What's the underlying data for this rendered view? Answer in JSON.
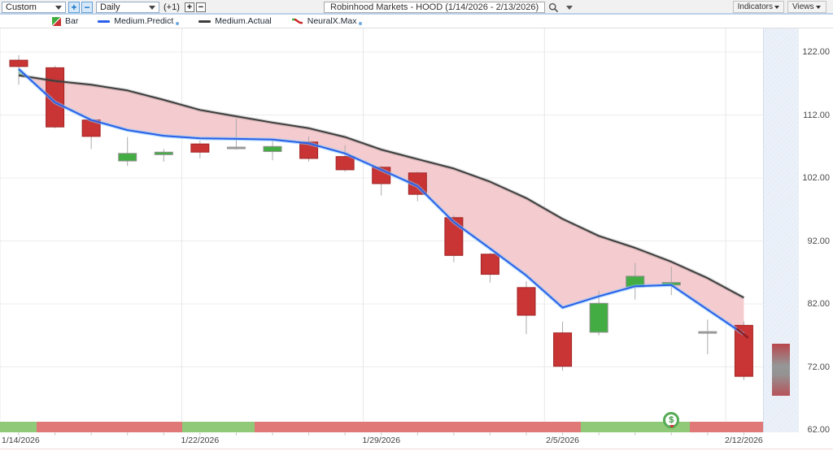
{
  "toolbar": {
    "range_value": "Custom",
    "period_value": "Daily",
    "plus_label": "+",
    "minus_label": "−",
    "offset_label": "(+1)",
    "title": "Robinhood Markets - HOOD (1/14/2026 - 2/13/2026)",
    "indicators_label": "Indicators",
    "views_label": "Views"
  },
  "legend": [
    {
      "label": "Bar",
      "icon": "bar-updown-icon"
    },
    {
      "label": "Medium.Predict",
      "icon": "line-swatch",
      "color": "#2a5fe8",
      "dot": true
    },
    {
      "label": "Medium.Actual",
      "icon": "line-swatch",
      "color": "#3d3d3d",
      "dot": false
    },
    {
      "label": "NeuralX.Max",
      "icon": "neuralx-icon",
      "dot": true
    }
  ],
  "chart_data": {
    "type": "candlestick",
    "title": "Robinhood Markets - HOOD (1/14/2026 - 2/13/2026)",
    "ylim": [
      62,
      122
    ],
    "grid": true,
    "y_ticks": [
      {
        "label": "122.00",
        "value": 122
      },
      {
        "label": "112.00",
        "value": 112
      },
      {
        "label": "102.00",
        "value": 102
      },
      {
        "label": "92.00",
        "value": 92
      },
      {
        "label": "82.00",
        "value": 82
      },
      {
        "label": "72.00",
        "value": 72
      },
      {
        "label": "62.00",
        "value": 62
      }
    ],
    "x_ticks": [
      {
        "label": "1/14/2026",
        "index": 0
      },
      {
        "label": "1/22/2026",
        "index": 5
      },
      {
        "label": "1/29/2026",
        "index": 10
      },
      {
        "label": "2/5/2026",
        "index": 15
      },
      {
        "label": "2/12/2026",
        "index": 20
      }
    ],
    "candles": [
      {
        "o": 120.7,
        "h": 121.5,
        "l": 116.8,
        "c": 119.7,
        "dir": "down"
      },
      {
        "o": 119.5,
        "h": 119.8,
        "l": 109.9,
        "c": 110.1,
        "dir": "down"
      },
      {
        "o": 111.2,
        "h": 111.3,
        "l": 106.6,
        "c": 108.6,
        "dir": "down"
      },
      {
        "o": 104.7,
        "h": 108.5,
        "l": 103.9,
        "c": 105.9,
        "dir": "up"
      },
      {
        "o": 105.7,
        "h": 106.6,
        "l": 104.6,
        "c": 106.1,
        "dir": "up"
      },
      {
        "o": 107.4,
        "h": 107.9,
        "l": 105.1,
        "c": 106.1,
        "dir": "down"
      },
      {
        "o": 106.9,
        "h": 111.4,
        "l": 106.5,
        "c": 106.9,
        "dir": "flat"
      },
      {
        "o": 106.2,
        "h": 108.1,
        "l": 104.8,
        "c": 107.0,
        "dir": "up"
      },
      {
        "o": 107.7,
        "h": 108.6,
        "l": 104.6,
        "c": 105.1,
        "dir": "down"
      },
      {
        "o": 105.4,
        "h": 107.2,
        "l": 103.0,
        "c": 103.3,
        "dir": "down"
      },
      {
        "o": 103.7,
        "h": 103.9,
        "l": 99.2,
        "c": 101.1,
        "dir": "down"
      },
      {
        "o": 102.8,
        "h": 103.0,
        "l": 98.3,
        "c": 99.4,
        "dir": "down"
      },
      {
        "o": 95.7,
        "h": 96.1,
        "l": 88.6,
        "c": 89.7,
        "dir": "down"
      },
      {
        "o": 89.9,
        "h": 90.1,
        "l": 85.4,
        "c": 86.7,
        "dir": "down"
      },
      {
        "o": 84.6,
        "h": 85.6,
        "l": 77.2,
        "c": 80.2,
        "dir": "down"
      },
      {
        "o": 77.4,
        "h": 79.2,
        "l": 71.4,
        "c": 72.1,
        "dir": "down"
      },
      {
        "o": 77.5,
        "h": 84.1,
        "l": 77.0,
        "c": 82.1,
        "dir": "up"
      },
      {
        "o": 84.7,
        "h": 88.5,
        "l": 82.7,
        "c": 86.4,
        "dir": "up"
      },
      {
        "o": 85.0,
        "h": 87.9,
        "l": 83.4,
        "c": 85.4,
        "dir": "up"
      },
      {
        "o": 77.6,
        "h": 79.5,
        "l": 74.0,
        "c": 77.6,
        "dir": "flat"
      },
      {
        "o": 78.6,
        "h": 79.2,
        "l": 69.9,
        "c": 70.5,
        "dir": "down"
      }
    ],
    "series": [
      {
        "name": "Medium.Predict",
        "color": "#2a5fe8",
        "values": [
          119.3,
          114.0,
          111.2,
          109.6,
          108.7,
          108.3,
          108.2,
          108.1,
          107.5,
          105.9,
          103.3,
          100.7,
          95.0,
          90.8,
          86.5,
          81.4,
          83.2,
          84.8,
          85.0,
          81.1,
          77.2
        ]
      },
      {
        "name": "Medium.Actual",
        "color": "#3d3d3d",
        "values": [
          118.3,
          117.4,
          116.8,
          115.9,
          114.4,
          112.8,
          111.8,
          110.8,
          109.9,
          108.5,
          106.5,
          105.0,
          103.5,
          101.4,
          98.8,
          95.5,
          92.8,
          90.9,
          88.7,
          86.1,
          83.0
        ]
      }
    ],
    "fill_between": {
      "above_color": "rgba(121,201,140,0.75)",
      "below_color": "#f4cbce"
    },
    "neuralx_max": {
      "color": "#8e1f24",
      "points": [
        [
          19.8,
          78.1
        ],
        [
          20.12,
          76.6
        ]
      ]
    },
    "signal_strip": {
      "colors": {
        "up": "#90c977",
        "down": "#e07878"
      },
      "segments": [
        {
          "from": 0,
          "to": 1,
          "state": "up"
        },
        {
          "from": 1,
          "to": 5,
          "state": "down"
        },
        {
          "from": 5,
          "to": 7,
          "state": "up"
        },
        {
          "from": 7,
          "to": 16,
          "state": "down"
        },
        {
          "from": 16,
          "to": 19,
          "state": "up"
        },
        {
          "from": 19,
          "to": 21,
          "state": "down"
        }
      ]
    },
    "money_marker": {
      "symbol": "$",
      "index": 18
    },
    "forecast_bar": {
      "p_top": 75.7,
      "p_bottom": 67.4
    },
    "candle_colors": {
      "up": "#43ad43",
      "up_border": "#8f8f8f",
      "down": "#c93434",
      "down_border": "#a22626",
      "flat": "#9a9a9a",
      "wick": "#ababab"
    }
  }
}
